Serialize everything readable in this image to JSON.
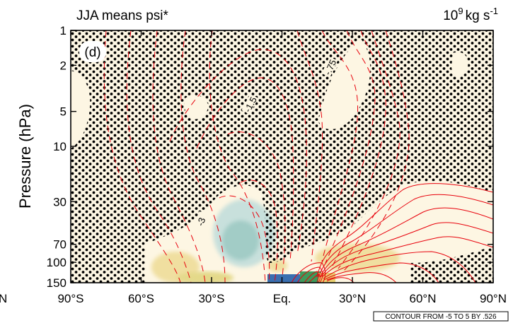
{
  "chart_data": {
    "type": "contour",
    "title_left": "JJA means psi*",
    "title_right_base": "10",
    "title_right_exp": "9",
    "title_right_unit": "kg s",
    "title_right_unit_exp": "-1",
    "panel_label": "(d)",
    "ylabel": "Pressure (hPa)",
    "yscale": "log",
    "ylim": [
      150,
      1
    ],
    "y_ticks": [
      {
        "value": 1,
        "label": "1"
      },
      {
        "value": 2,
        "label": "2"
      },
      {
        "value": 5,
        "label": "5"
      },
      {
        "value": 10,
        "label": "10"
      },
      {
        "value": 30,
        "label": "30"
      },
      {
        "value": 70,
        "label": "70"
      },
      {
        "value": 100,
        "label": "100"
      },
      {
        "value": 150,
        "label": "150"
      }
    ],
    "xlim": [
      -90,
      90
    ],
    "x_ticks": [
      {
        "value": -90,
        "label": "90°S"
      },
      {
        "value": -60,
        "label": "60°S"
      },
      {
        "value": -30,
        "label": "30°S"
      },
      {
        "value": 0,
        "label": "Eq."
      },
      {
        "value": 30,
        "label": "30°N"
      },
      {
        "value": 60,
        "label": "60°N"
      },
      {
        "value": 90,
        "label": "90°N"
      }
    ],
    "x_cut_label": "N",
    "contour_labels": [
      {
        "text": "-.75",
        "lat": 21,
        "p": 2.1,
        "angle": -65
      },
      {
        "text": "-1.5",
        "lat": -13,
        "p": 4.4,
        "angle": -62
      },
      {
        "text": "-3",
        "lat": -34,
        "p": 45,
        "angle": -70
      }
    ],
    "contour_note": "CONTOUR FROM -5 TO 5 BY .526",
    "colors": {
      "contour": "#e8000b",
      "fill_light": "#fdf6e3",
      "fill_yellow": "#f0dfa0",
      "fill_teal": "#c8e0dc",
      "fill_teal_dark": "#a2ccc6",
      "fill_blue": "#3a6fb0",
      "fill_green": "#3e9a5a",
      "stipple": "#000000"
    }
  }
}
